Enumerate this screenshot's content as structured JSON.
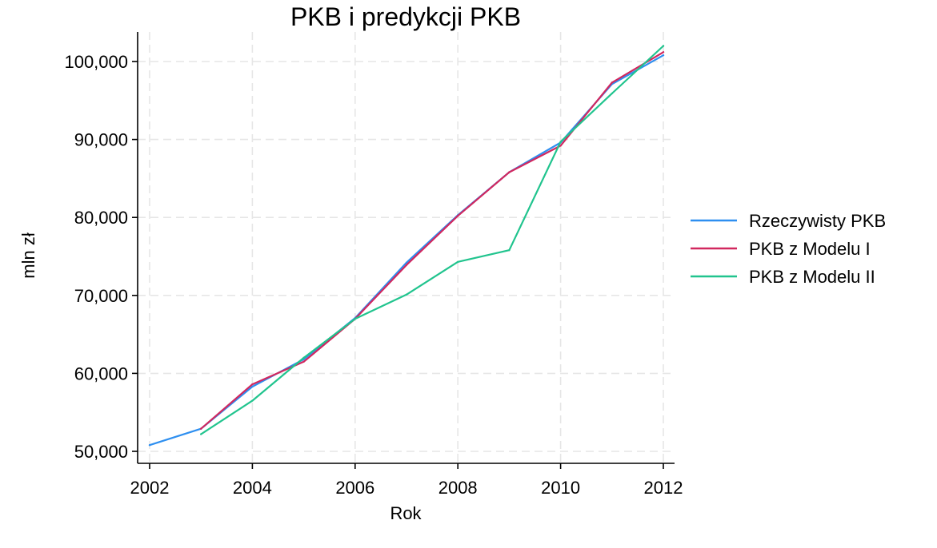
{
  "chart_data": {
    "type": "line",
    "title": "PKB i predykcji PKB",
    "xlabel": "Rok",
    "ylabel": "mln zł",
    "xlim": [
      2002,
      2012
    ],
    "ylim": [
      48000,
      104000
    ],
    "xticks": [
      2002,
      2004,
      2006,
      2008,
      2010,
      2012
    ],
    "xtick_labels": [
      "2002",
      "2004",
      "2006",
      "2008",
      "2010",
      "2012"
    ],
    "yticks": [
      50000,
      60000,
      70000,
      80000,
      90000,
      100000
    ],
    "ytick_labels": [
      "50,000",
      "60,000",
      "70,000",
      "80,000",
      "90,000",
      "100,000"
    ],
    "grid": true,
    "legend_position": "right",
    "series": [
      {
        "name": "Rzeczywisty PKB",
        "color": "#2e8ff0",
        "x": [
          2002,
          2003,
          2004,
          2005,
          2006,
          2007,
          2008,
          2009,
          2010,
          2011,
          2012
        ],
        "y": [
          50800,
          52900,
          58300,
          61800,
          67100,
          74200,
          80300,
          85800,
          89600,
          97100,
          100800
        ]
      },
      {
        "name": "PKB z Modelu I",
        "color": "#d1285f",
        "x": [
          2003,
          2004,
          2005,
          2006,
          2007,
          2008,
          2009,
          2010,
          2011,
          2012
        ],
        "y": [
          52900,
          58600,
          61500,
          67000,
          73900,
          80200,
          85800,
          89200,
          97300,
          101200
        ]
      },
      {
        "name": "PKB z Modelu II",
        "color": "#21c48e",
        "x": [
          2003,
          2004,
          2005,
          2006,
          2007,
          2008,
          2009,
          2010,
          2011,
          2012
        ],
        "y": [
          52200,
          56500,
          62000,
          67000,
          70100,
          74300,
          75800,
          89700,
          95900,
          102000
        ]
      }
    ]
  }
}
